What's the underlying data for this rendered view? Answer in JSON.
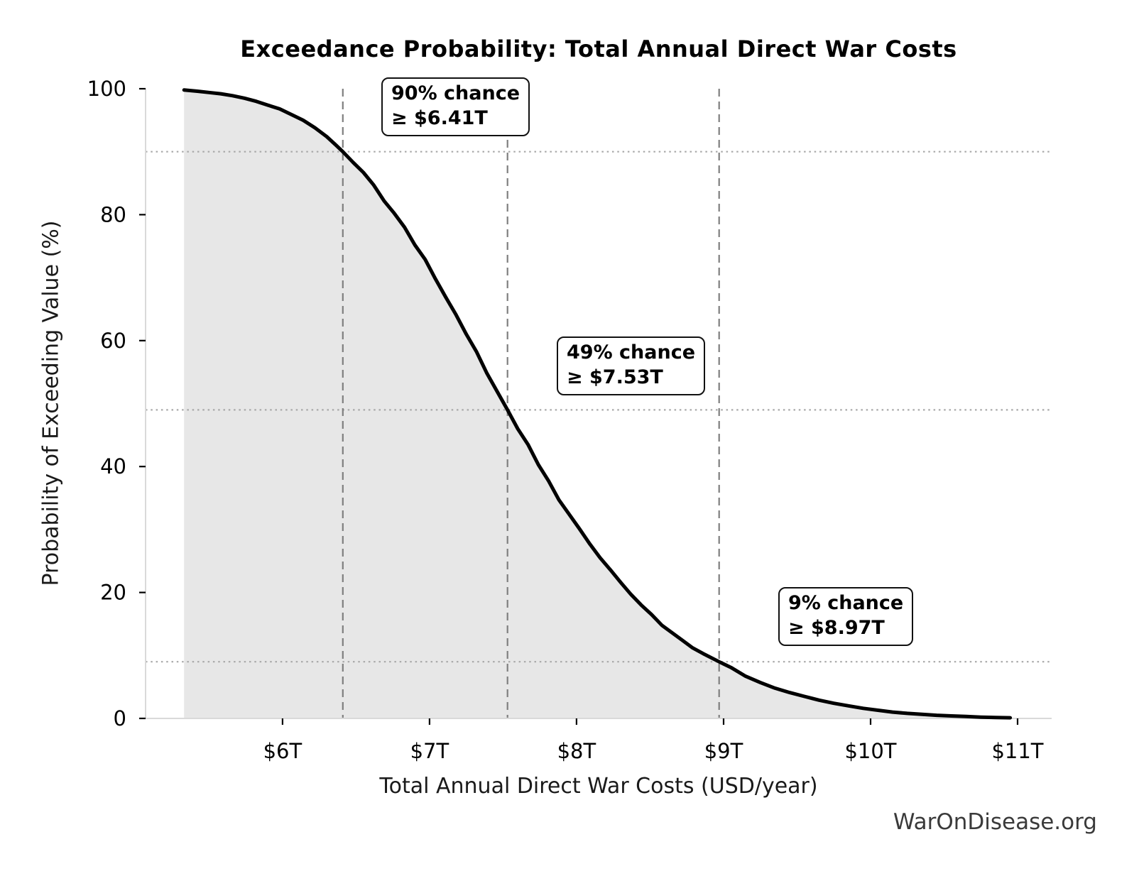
{
  "watermark": "WarOnDisease.org",
  "chart_data": {
    "type": "area",
    "subtype": "exceedance-probability-curve",
    "title": "Exceedance Probability: Total Annual Direct War Costs",
    "xlabel": "Total Annual Direct War Costs (USD/year)",
    "ylabel": "Probability of Exceeding Value (%)",
    "xlim": [
      5.068,
      11.232
    ],
    "ylim": [
      0,
      100
    ],
    "grid": false,
    "legend": "none",
    "x_ticks": {
      "values": [
        6,
        7,
        8,
        9,
        10,
        11
      ],
      "labels": [
        "$6T",
        "$7T",
        "$8T",
        "$9T",
        "$10T",
        "$11T"
      ]
    },
    "y_ticks": {
      "values": [
        0,
        20,
        40,
        60,
        80,
        100
      ],
      "labels": [
        "0",
        "20",
        "40",
        "60",
        "80",
        "100"
      ]
    },
    "curve_units": {
      "x": "trillion USD per year",
      "y": "percent probability of exceeding value"
    },
    "exceedance_curve": [
      [
        5.33,
        99.8
      ],
      [
        5.42,
        99.6
      ],
      [
        5.5,
        99.4
      ],
      [
        5.58,
        99.2
      ],
      [
        5.66,
        98.9
      ],
      [
        5.74,
        98.5
      ],
      [
        5.82,
        98.0
      ],
      [
        5.9,
        97.4
      ],
      [
        5.98,
        96.8
      ],
      [
        6.06,
        95.9
      ],
      [
        6.14,
        95.0
      ],
      [
        6.22,
        93.8
      ],
      [
        6.3,
        92.4
      ],
      [
        6.36,
        91.1
      ],
      [
        6.41,
        90.0
      ],
      [
        6.48,
        88.3
      ],
      [
        6.55,
        86.7
      ],
      [
        6.62,
        84.7
      ],
      [
        6.69,
        82.2
      ],
      [
        6.76,
        80.2
      ],
      [
        6.83,
        78.0
      ],
      [
        6.9,
        75.2
      ],
      [
        6.97,
        72.9
      ],
      [
        7.04,
        69.8
      ],
      [
        7.11,
        66.9
      ],
      [
        7.18,
        64.1
      ],
      [
        7.25,
        61.0
      ],
      [
        7.32,
        58.2
      ],
      [
        7.39,
        54.8
      ],
      [
        7.46,
        51.9
      ],
      [
        7.53,
        49.0
      ],
      [
        7.6,
        46.0
      ],
      [
        7.67,
        43.5
      ],
      [
        7.74,
        40.3
      ],
      [
        7.81,
        37.7
      ],
      [
        7.88,
        34.7
      ],
      [
        7.95,
        32.4
      ],
      [
        8.02,
        30.1
      ],
      [
        8.09,
        27.7
      ],
      [
        8.16,
        25.5
      ],
      [
        8.23,
        23.6
      ],
      [
        8.3,
        21.6
      ],
      [
        8.37,
        19.7
      ],
      [
        8.44,
        18.0
      ],
      [
        8.51,
        16.5
      ],
      [
        8.58,
        14.8
      ],
      [
        8.65,
        13.6
      ],
      [
        8.72,
        12.4
      ],
      [
        8.79,
        11.2
      ],
      [
        8.86,
        10.3
      ],
      [
        8.97,
        9.0
      ],
      [
        9.05,
        8.1
      ],
      [
        9.15,
        6.7
      ],
      [
        9.25,
        5.7
      ],
      [
        9.35,
        4.8
      ],
      [
        9.45,
        4.1
      ],
      [
        9.55,
        3.5
      ],
      [
        9.65,
        2.9
      ],
      [
        9.75,
        2.4
      ],
      [
        9.85,
        2.0
      ],
      [
        9.95,
        1.6
      ],
      [
        10.05,
        1.3
      ],
      [
        10.15,
        1.0
      ],
      [
        10.25,
        0.8
      ],
      [
        10.35,
        0.65
      ],
      [
        10.45,
        0.5
      ],
      [
        10.55,
        0.4
      ],
      [
        10.65,
        0.3
      ],
      [
        10.75,
        0.2
      ],
      [
        10.85,
        0.15
      ],
      [
        10.95,
        0.1
      ]
    ],
    "annotations": [
      {
        "line1": "90% chance",
        "line2": "≥ $6.41T",
        "probability_pct": 90,
        "value_trillions": 6.41
      },
      {
        "line1": "49% chance",
        "line2": "≥ $7.53T",
        "probability_pct": 49,
        "value_trillions": 7.53
      },
      {
        "line1": "9% chance",
        "line2": "≥ $8.97T",
        "probability_pct": 9,
        "value_trillions": 8.97
      }
    ],
    "guides": {
      "vertical_at_x": [
        6.41,
        7.53,
        8.97
      ],
      "horizontal_at_y": [
        90,
        49,
        9
      ]
    },
    "colors": {
      "curve": "#000000",
      "fill": "#e7e7e7",
      "dashed_guide": "#7f7f7f",
      "dotted_guide": "#a8a8a8",
      "axis": "#d9d9d9",
      "tick": "#000000",
      "text": "#000000",
      "watermark": "#3a3a3a",
      "background": "#ffffff"
    }
  }
}
